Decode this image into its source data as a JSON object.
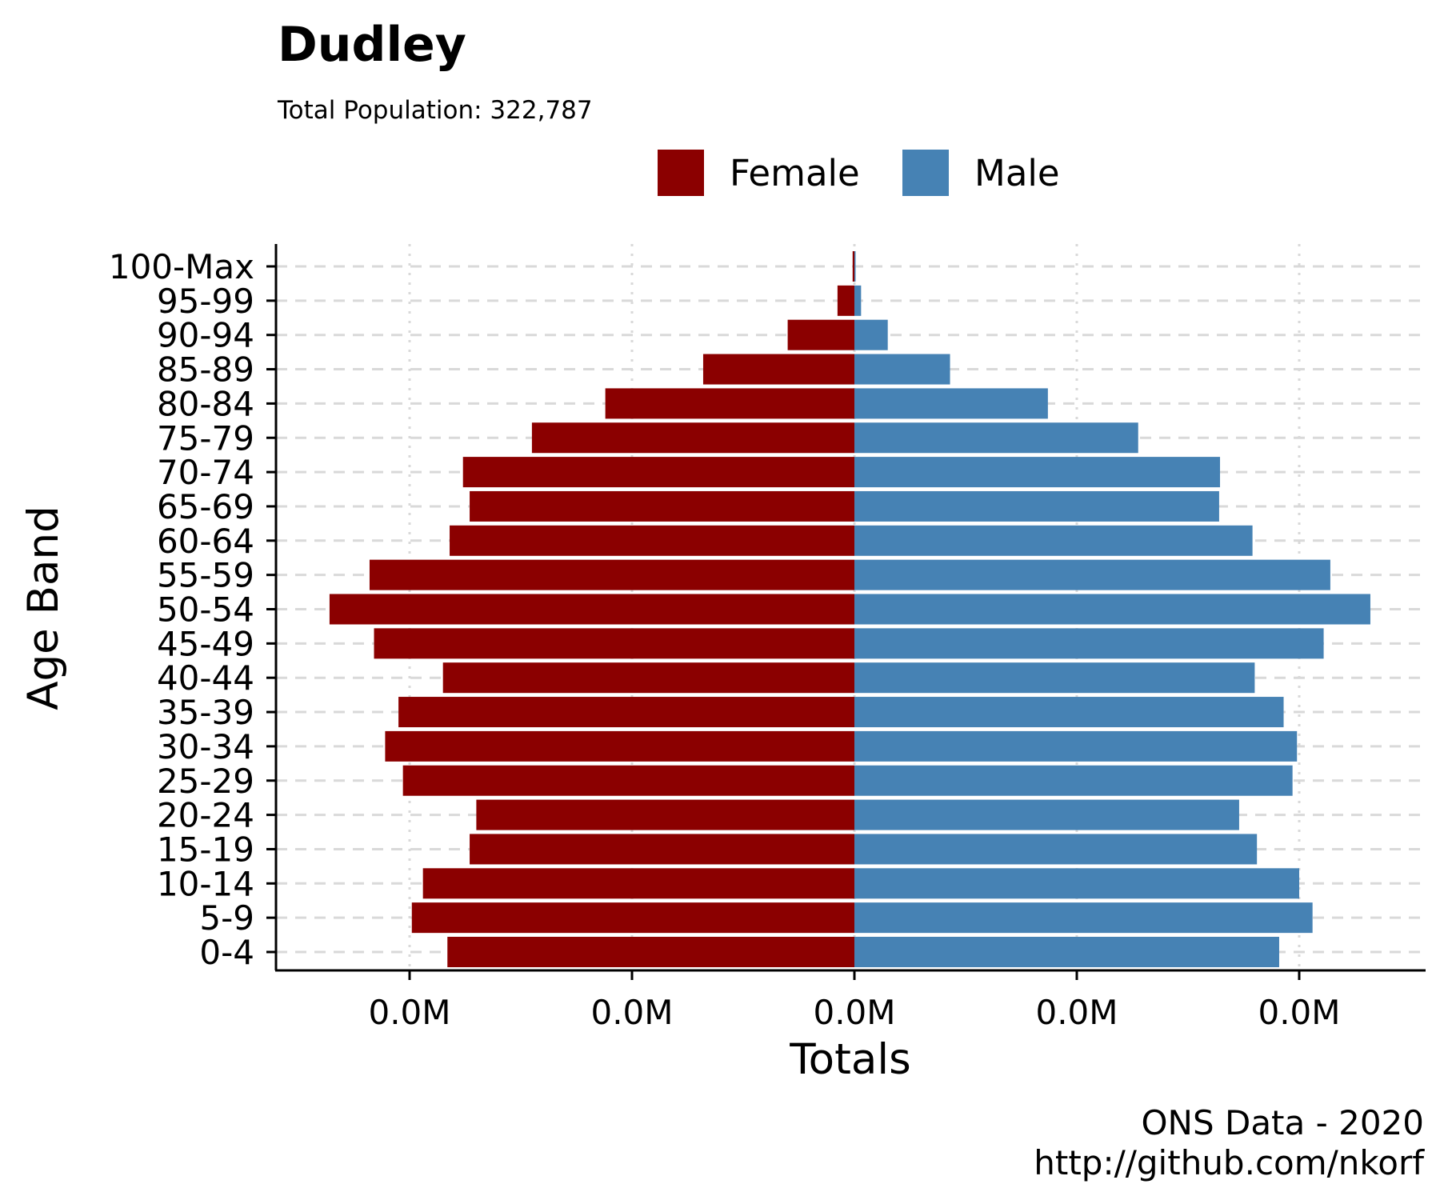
{
  "chart_data": {
    "type": "bar",
    "title": "Dudley",
    "subtitle": "Total Population:  322,787",
    "xlabel": "Totals",
    "ylabel": "Age Band",
    "caption_lines": [
      "ONS Data - 2020",
      "http://github.com/nkorf"
    ],
    "x_tick_labels": [
      "0.0M",
      "0.0M",
      "0.0M",
      "0.0M",
      "0.0M"
    ],
    "x_tick_values": [
      -10000,
      -5000,
      0,
      5000,
      10000
    ],
    "xlim": [
      -13000,
      13000
    ],
    "grid": true,
    "legend_position": "top",
    "categories": [
      "0-4",
      "5-9",
      "10-14",
      "15-19",
      "20-24",
      "25-29",
      "30-34",
      "35-39",
      "40-44",
      "45-49",
      "50-54",
      "55-59",
      "60-64",
      "65-69",
      "70-74",
      "75-79",
      "80-84",
      "85-89",
      "90-94",
      "95-99",
      "100-Max"
    ],
    "series": [
      {
        "name": "Female",
        "color": "#8b0000",
        "values": [
          -9150,
          -9950,
          -9700,
          -8650,
          -8500,
          -10150,
          -10550,
          -10250,
          -9250,
          -10800,
          -11800,
          -10900,
          -9100,
          -8650,
          -8800,
          -7250,
          -5600,
          -3400,
          -1500,
          -380,
          -40
        ]
      },
      {
        "name": "Male",
        "color": "#4682b4",
        "values": [
          9550,
          10300,
          10000,
          9050,
          8650,
          9850,
          9950,
          9650,
          9000,
          10550,
          11600,
          10700,
          8950,
          8200,
          8220,
          6380,
          4350,
          2150,
          750,
          150,
          15
        ]
      }
    ]
  }
}
